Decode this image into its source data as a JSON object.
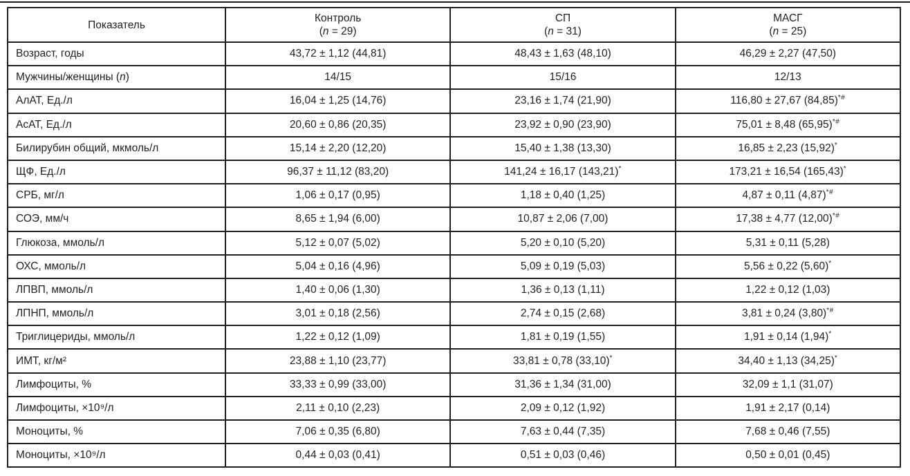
{
  "table": {
    "columns": [
      {
        "label": "Показатель",
        "sub": ""
      },
      {
        "label": "Контроль",
        "sub": "(n = 29)"
      },
      {
        "label": "СП",
        "sub": "(n = 31)"
      },
      {
        "label": "МАСГ",
        "sub": "(n = 25)"
      }
    ],
    "rows": [
      {
        "label": "Возраст, годы",
        "values": [
          "43,72 ± 1,12 (44,81)",
          "48,43 ± 1,63 (48,10)",
          "46,29 ± 2,27 (47,50)"
        ]
      },
      {
        "label": "Мужчины/женщины (n)",
        "values": [
          "14/15",
          "15/16",
          "12/13"
        ]
      },
      {
        "label": "АлАТ, Ед./л",
        "values": [
          "16,04 ± 1,25 (14,76)",
          "23,16 ± 1,74 (21,90)",
          "116,80 ± 27,67 (84,85)*#"
        ]
      },
      {
        "label": "АсАТ, Ед./л",
        "values": [
          "20,60 ± 0,86 (20,35)",
          "23,92 ± 0,90 (23,90)",
          "75,01 ± 8,48 (65,95)*#"
        ]
      },
      {
        "label": "Билирубин общий, мкмоль/л",
        "values": [
          "15,14 ± 2,20 (12,20)",
          "15,40 ± 1,38 (13,30)",
          "16,85 ± 2,23 (15,92)*"
        ]
      },
      {
        "label": "ЩФ, Ед./л",
        "values": [
          "96,37 ± 11,12 (83,20)",
          "141,24 ± 16,17 (143,21)*",
          "173,21 ± 16,54 (165,43)*"
        ]
      },
      {
        "label": "СРБ, мг/л",
        "values": [
          "1,06 ± 0,17 (0,95)",
          "1,18 ± 0,40 (1,25)",
          "4,87 ± 0,11 (4,87)*#"
        ]
      },
      {
        "label": "СОЭ, мм/ч",
        "values": [
          "8,65 ± 1,94 (6,00)",
          "10,87 ± 2,06 (7,00)",
          "17,38 ± 4,77 (12,00)*#"
        ]
      },
      {
        "label": "Глюкоза, ммоль/л",
        "values": [
          "5,12 ± 0,07 (5,02)",
          "5,20 ± 0,10 (5,20)",
          "5,31 ± 0,11 (5,28)"
        ]
      },
      {
        "label": "ОХС, ммоль/л",
        "values": [
          "5,04 ± 0,16 (4,96)",
          "5,09 ± 0,19 (5,03)",
          "5,56 ± 0,22 (5,60)*"
        ]
      },
      {
        "label": "ЛПВП, ммоль/л",
        "values": [
          "1,40 ± 0,06 (1,30)",
          "1,36 ± 0,13 (1,11)",
          "1,22 ± 0,12 (1,03)"
        ]
      },
      {
        "label": "ЛПНП, ммоль/л",
        "values": [
          "3,01 ± 0,18 (2,56)",
          "2,74 ± 0,15 (2,68)",
          "3,81 ± 0,24 (3,80)*#"
        ]
      },
      {
        "label": "Триглицериды, ммоль/л",
        "values": [
          "1,22 ± 0,12 (1,09)",
          "1,81 ± 0,19 (1,55)",
          "1,91 ± 0,14 (1,94)*"
        ]
      },
      {
        "label": "ИМТ, кг/м²",
        "values": [
          "23,88 ± 1,10 (23,77)",
          "33,81 ± 0,78 (33,10)*",
          "34,40 ± 1,13 (34,25)*"
        ]
      },
      {
        "label": "Лимфоциты, %",
        "values": [
          "33,33 ± 0,99 (33,00)",
          "31,36 ± 1,34 (31,00)",
          "32,09 ± 1,1 (31,07)"
        ]
      },
      {
        "label": "Лимфоциты, ×10⁹/л",
        "values": [
          "2,11 ± 0,10 (2,23)",
          "2,09 ± 0,12 (1,92)",
          "1,91 ± 2,17 (0,14)"
        ]
      },
      {
        "label": "Моноциты, %",
        "values": [
          "7,06 ± 0,35 (6,80)",
          "7,63 ± 0,44 (7,35)",
          "7,68 ± 0,46 (7,55)"
        ]
      },
      {
        "label": "Моноциты, ×10⁹/л",
        "values": [
          "0,44 ± 0,03 (0,41)",
          "0,51 ± 0,03 (0,46)",
          "0,50 ± 0,01 (0,45)"
        ]
      }
    ]
  }
}
